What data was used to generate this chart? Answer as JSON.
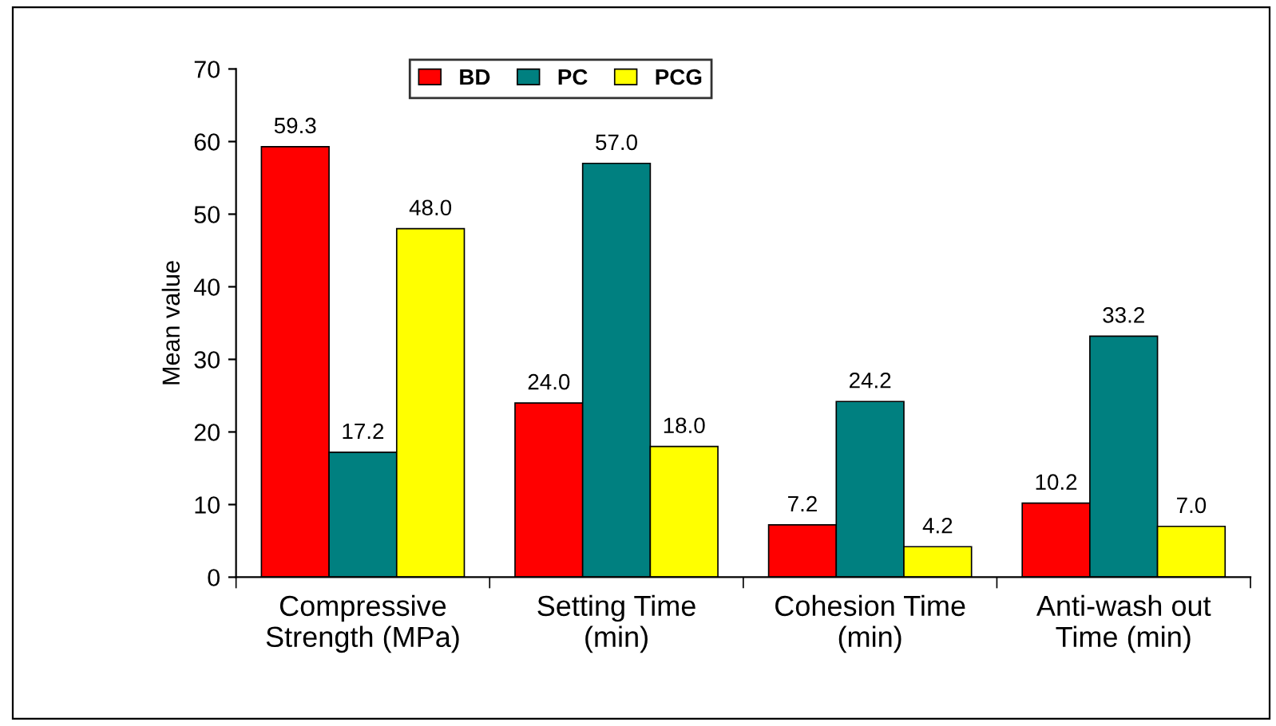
{
  "chart_data": {
    "type": "bar",
    "ylabel": "Mean value",
    "categories": [
      "Compressive\nStrength (MPa)",
      "Setting Time\n(min)",
      "Cohesion Time\n(min)",
      "Anti-wash out\nTime (min)"
    ],
    "series": [
      {
        "name": "BD",
        "color": "#ff0000",
        "values": [
          59.3,
          24.0,
          7.2,
          10.2
        ],
        "value_labels": [
          "59.3",
          "24.0",
          "7.2",
          "10.2"
        ]
      },
      {
        "name": "PC",
        "color": "#008080",
        "values": [
          17.2,
          57.0,
          24.2,
          33.2
        ],
        "value_labels": [
          "17.2",
          "57.0",
          "24.2",
          "33.2"
        ]
      },
      {
        "name": "PCG",
        "color": "#ffff00",
        "values": [
          48.0,
          18.0,
          4.2,
          7.0
        ],
        "value_labels": [
          "48.0",
          "18.0",
          "4.2",
          "7.0"
        ]
      }
    ],
    "ylim": [
      0,
      70
    ],
    "yticks": [
      0,
      10,
      20,
      30,
      40,
      50,
      60,
      70
    ],
    "grid": false,
    "legend": "top"
  }
}
